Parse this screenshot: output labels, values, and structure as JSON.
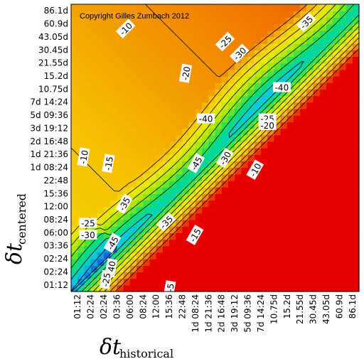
{
  "chart_data": {
    "type": "heatmap",
    "copyright": "Copyright Gilles Zumbach 2012",
    "xlabel": {
      "symbol": "δt",
      "subscript": "historical"
    },
    "ylabel": {
      "symbol": "δt",
      "subscript": "centered"
    },
    "tick_labels": [
      "01:12",
      "02:24",
      "02:24",
      "03:36",
      "06:00",
      "08:24",
      "12:00",
      "15:36",
      "22:48",
      "1d 08:24",
      "1d 21:36",
      "2d 16:48",
      "3d 19:12",
      "5d 09:36",
      "7d 14:24",
      "10.75d",
      "15.2d",
      "21.55d",
      "30.45d",
      "43.05d",
      "60.9d",
      "86.1d"
    ],
    "value_range": [
      -50,
      0
    ],
    "contour_levels": [
      -45,
      -40,
      -35,
      -30,
      -25,
      -20,
      -15,
      -10,
      -5
    ],
    "contour_labels": [
      {
        "text": "-10",
        "x_index": 4.2,
        "y_index": 20.1,
        "angle": -45
      },
      {
        "text": "-35",
        "x_index": 18.0,
        "y_index": 20.6,
        "angle": -45
      },
      {
        "text": "-25",
        "x_index": 11.8,
        "y_index": 19.1,
        "angle": -45
      },
      {
        "text": "-30",
        "x_index": 12.9,
        "y_index": 18.2,
        "angle": -45
      },
      {
        "text": "-20",
        "x_index": 8.8,
        "y_index": 16.7,
        "angle": -80
      },
      {
        "text": "-40",
        "x_index": 16.1,
        "y_index": 15.6,
        "angle": 0
      },
      {
        "text": "-40",
        "x_index": 10.3,
        "y_index": 13.2,
        "angle": 0
      },
      {
        "text": "-25",
        "x_index": 15.0,
        "y_index": 13.2,
        "angle": 0
      },
      {
        "text": "-20",
        "x_index": 15.0,
        "y_index": 12.7,
        "angle": 0
      },
      {
        "text": "-10",
        "x_index": 1.0,
        "y_index": 10.3,
        "angle": -80
      },
      {
        "text": "-15",
        "x_index": 2.9,
        "y_index": 9.8,
        "angle": -80
      },
      {
        "text": "-45",
        "x_index": 9.6,
        "y_index": 9.8,
        "angle": -60
      },
      {
        "text": "-30",
        "x_index": 11.8,
        "y_index": 10.2,
        "angle": -60
      },
      {
        "text": "-10",
        "x_index": 14.1,
        "y_index": 9.3,
        "angle": -60
      },
      {
        "text": "-35",
        "x_index": 4.1,
        "y_index": 6.7,
        "angle": -60
      },
      {
        "text": "-35",
        "x_index": 7.3,
        "y_index": 5.3,
        "angle": -45
      },
      {
        "text": "-25",
        "x_index": 1.3,
        "y_index": 5.2,
        "angle": 0
      },
      {
        "text": "-30",
        "x_index": 1.3,
        "y_index": 4.3,
        "angle": 0
      },
      {
        "text": "-45",
        "x_index": 3.2,
        "y_index": 3.7,
        "angle": -60
      },
      {
        "text": "-15",
        "x_index": 9.5,
        "y_index": 4.3,
        "angle": -60
      },
      {
        "text": "-40",
        "x_index": 3.1,
        "y_index": 1.8,
        "angle": -80
      },
      {
        "text": "-25",
        "x_index": 2.7,
        "y_index": 0.9,
        "angle": -80
      },
      {
        "text": "-5",
        "x_index": 7.6,
        "y_index": 0.3,
        "angle": -80
      }
    ],
    "grid": false,
    "legend": "none",
    "colormap": [
      "#1a4fd8",
      "#00c8e8",
      "#00e070",
      "#a6e800",
      "#f2e800",
      "#f5c000",
      "#f07000",
      "#e60000"
    ],
    "colors": {
      "background": "#ffffff",
      "contour": "#000000"
    }
  }
}
